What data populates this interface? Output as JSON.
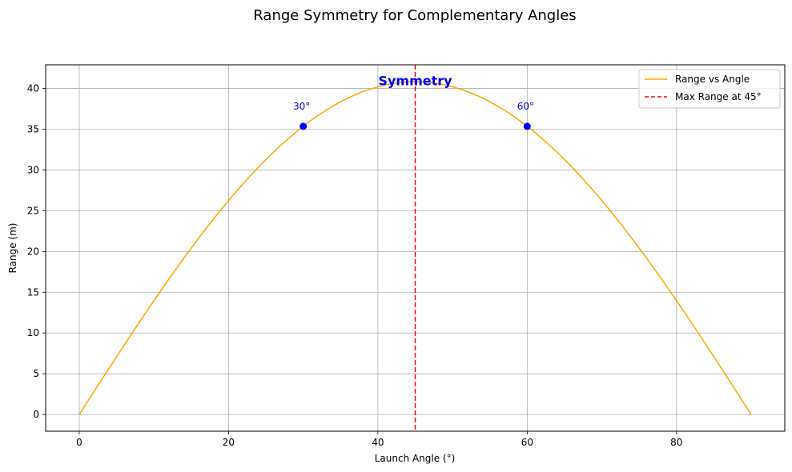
{
  "chart_data": {
    "type": "line",
    "title": "Range Symmetry for Complementary Angles",
    "xlabel": "Launch Angle (°)",
    "ylabel": "Range (m)",
    "xlim": [
      -4.5,
      94.5
    ],
    "ylim": [
      -2.05,
      42.9
    ],
    "xticks": [
      0,
      20,
      40,
      60,
      80
    ],
    "yticks": [
      0,
      5,
      10,
      15,
      20,
      25,
      30,
      35,
      40
    ],
    "grid": true,
    "legend_position": "top-right",
    "series": [
      {
        "name": "Range vs Angle",
        "kind": "line",
        "color": "#ffa500",
        "x": [
          0,
          5,
          10,
          15,
          20,
          25,
          30,
          35,
          40,
          45,
          50,
          55,
          60,
          65,
          70,
          75,
          80,
          85,
          90
        ],
        "y": [
          0,
          7.09,
          13.96,
          20.41,
          26.24,
          31.27,
          35.35,
          38.36,
          40.2,
          40.82,
          40.2,
          38.36,
          35.35,
          31.27,
          26.24,
          20.41,
          13.96,
          7.09,
          0
        ]
      }
    ],
    "vline": {
      "name": "Max Range at 45°",
      "x": 45,
      "color": "#ff0000",
      "style": "dashed"
    },
    "points": [
      {
        "x": 30,
        "y": 35.35,
        "label": "30°",
        "color": "#0000ff"
      },
      {
        "x": 60,
        "y": 35.35,
        "label": "60°",
        "color": "#0000ff"
      }
    ],
    "annotation": {
      "text": "Symmetry",
      "x": 45,
      "y": 40.4,
      "color": "#0000ff"
    }
  }
}
